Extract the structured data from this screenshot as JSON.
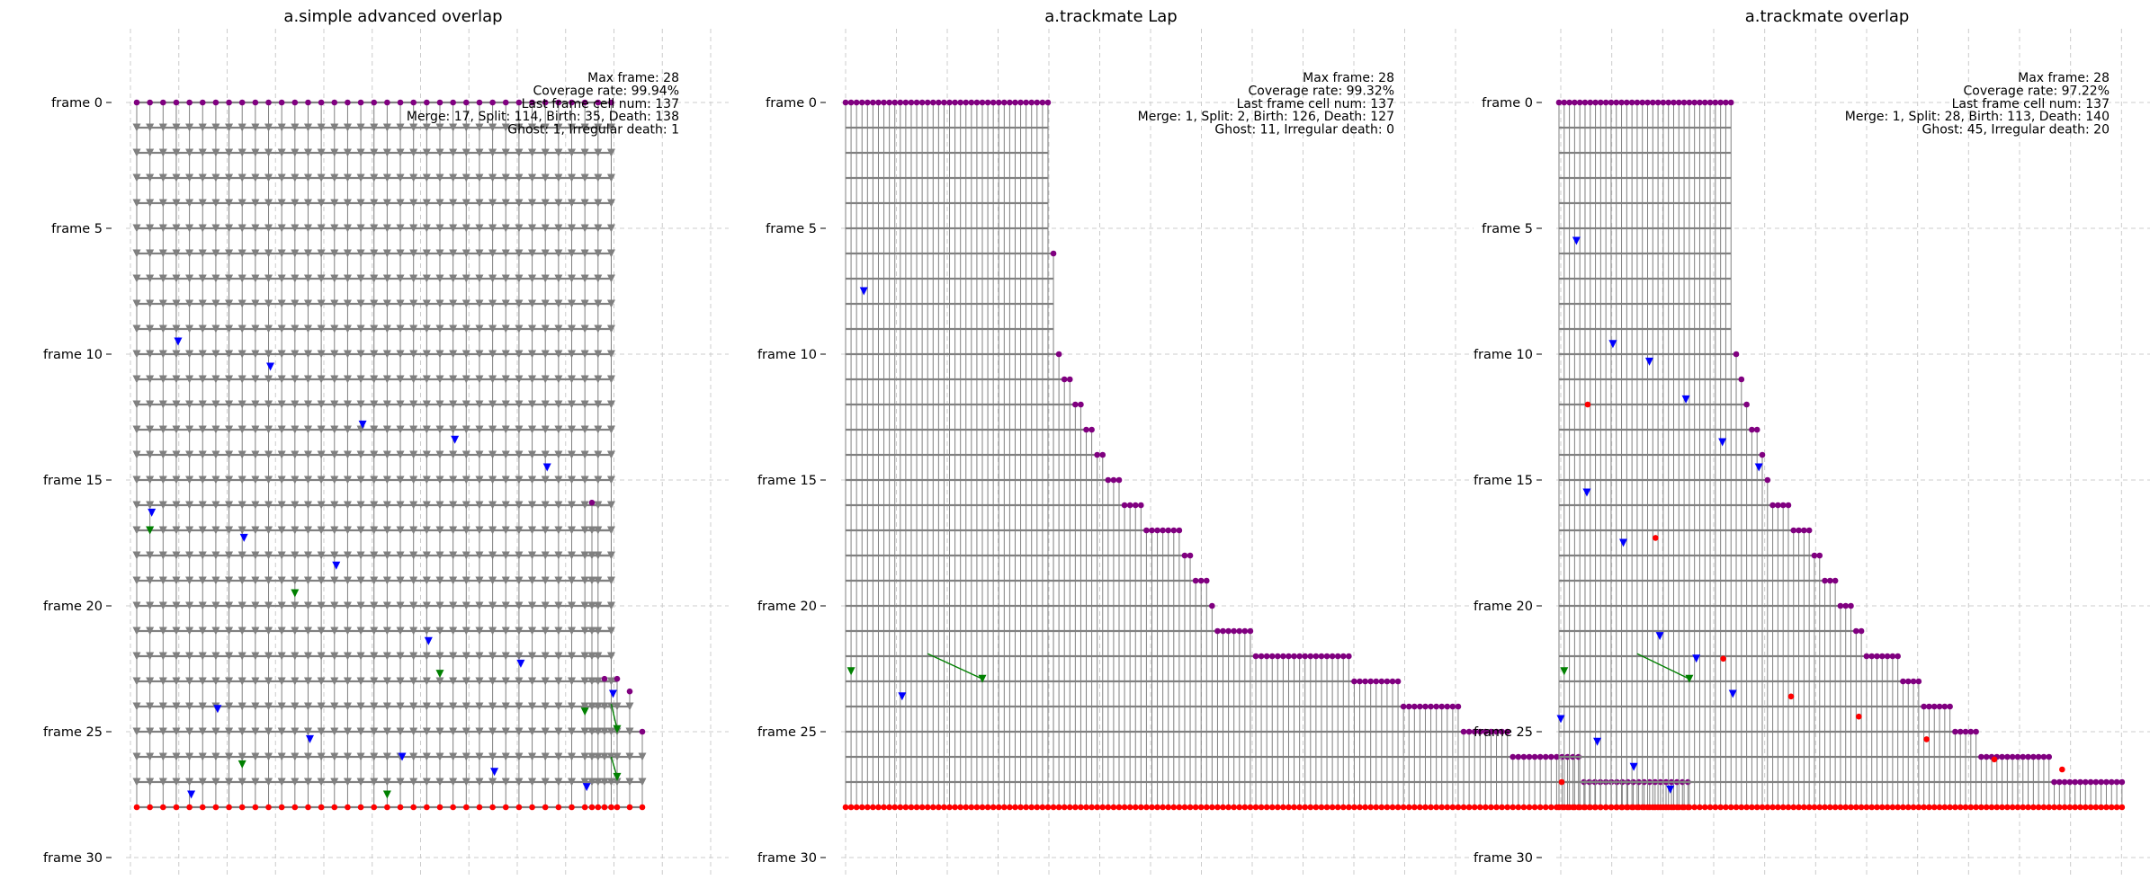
{
  "chart_data": [
    {
      "type": "scatter",
      "title": "a.simple advanced overlap",
      "ylim": [
        0,
        30
      ],
      "yticks": [
        "frame 0",
        "frame 5",
        "frame 10",
        "frame 15",
        "frame 20",
        "frame 25",
        "frame 30"
      ],
      "grid": true,
      "annotations": [
        "Max frame: 28",
        "Coverage rate: 99.94%",
        "Last frame cell num: 137",
        "Merge: 17, Split: 114, Birth: 35, Death: 138",
        "Ghost: 1, Irregular death: 1"
      ],
      "annotation_placement": "top-right",
      "colors": {
        "start": "#800080",
        "end": "#ff0000",
        "track": "#808080",
        "split": "#0000ff",
        "merge": "#008000"
      },
      "tracks_main": 37,
      "tracks": [
        {
          "start": 15.9,
          "end": 28
        },
        {
          "start": 22.9,
          "end": 28
        },
        {
          "start": 22.9,
          "end": 28
        },
        {
          "start": 23.4,
          "end": 28
        },
        {
          "start": 25.0,
          "end": 28
        }
      ],
      "split_frames": [
        9.5,
        10.5,
        12.8,
        13.4,
        14.5,
        16.3,
        17.3,
        18.4,
        21.4,
        22.3,
        23.5,
        24.1,
        25.3,
        26.0,
        26.6,
        27.2,
        27.5
      ],
      "merge_frames": [
        17.0,
        19.5,
        22.7,
        24.2,
        26.3,
        27.5
      ],
      "cross_links": [
        {
          "from": 23.9,
          "to": 24.9
        },
        {
          "from": 26.0,
          "to": 26.8
        }
      ]
    },
    {
      "type": "scatter",
      "title": "a.trackmate Lap",
      "ylim": [
        0,
        30
      ],
      "yticks": [
        "frame 0",
        "frame 5",
        "frame 10",
        "frame 15",
        "frame 20",
        "frame 25",
        "frame 30"
      ],
      "grid": true,
      "annotations": [
        "Max frame: 28",
        "Coverage rate: 99.32%",
        "Last frame cell num: 137",
        "Merge: 1, Split: 2, Birth: 126, Death: 127",
        "Ghost: 11, Irregular death: 0"
      ],
      "annotation_placement": "top-right",
      "colors": {
        "start": "#800080",
        "end": "#ff0000",
        "track": "#808080",
        "split": "#0000ff",
        "merge": "#008000"
      },
      "initial_count": 38,
      "births": [
        {
          "frame": 6,
          "count": 1
        },
        {
          "frame": 10,
          "count": 1
        },
        {
          "frame": 11,
          "count": 2
        },
        {
          "frame": 12,
          "count": 2
        },
        {
          "frame": 13,
          "count": 2
        },
        {
          "frame": 14,
          "count": 2
        },
        {
          "frame": 15,
          "count": 3
        },
        {
          "frame": 16,
          "count": 4
        },
        {
          "frame": 17,
          "count": 7
        },
        {
          "frame": 18,
          "count": 2
        },
        {
          "frame": 19,
          "count": 3
        },
        {
          "frame": 20,
          "count": 1
        },
        {
          "frame": 21,
          "count": 7
        },
        {
          "frame": 22,
          "count": 18
        },
        {
          "frame": 23,
          "count": 9
        },
        {
          "frame": 24,
          "count": 11
        },
        {
          "frame": 25,
          "count": 9
        },
        {
          "frame": 26,
          "count": 13
        },
        {
          "frame": 27,
          "count": 20
        }
      ],
      "split_frames": [
        7.5,
        23.6
      ],
      "merge_frames": [
        22.6
      ],
      "cross_links": [
        {
          "from": 21.9,
          "to": 22.9
        }
      ]
    },
    {
      "type": "scatter",
      "title": "a.trackmate overlap",
      "ylim": [
        0,
        30
      ],
      "yticks": [
        "frame 0",
        "frame 5",
        "frame 10",
        "frame 15",
        "frame 20",
        "frame 25",
        "frame 30"
      ],
      "grid": true,
      "annotations": [
        "Max frame: 28",
        "Coverage rate: 97.22%",
        "Last frame cell num: 137",
        "Merge: 1, Split: 28, Birth: 113, Death: 140",
        "Ghost: 45, Irregular death: 20"
      ],
      "annotation_placement": "top-right",
      "colors": {
        "start": "#800080",
        "end": "#ff0000",
        "track": "#808080",
        "split": "#0000ff",
        "merge": "#008000"
      },
      "initial_count": 34,
      "births": [
        {
          "frame": 10,
          "count": 1
        },
        {
          "frame": 11,
          "count": 1
        },
        {
          "frame": 12,
          "count": 1
        },
        {
          "frame": 13,
          "count": 2
        },
        {
          "frame": 14,
          "count": 1
        },
        {
          "frame": 15,
          "count": 1
        },
        {
          "frame": 16,
          "count": 4
        },
        {
          "frame": 17,
          "count": 4
        },
        {
          "frame": 18,
          "count": 2
        },
        {
          "frame": 19,
          "count": 3
        },
        {
          "frame": 20,
          "count": 3
        },
        {
          "frame": 21,
          "count": 2
        },
        {
          "frame": 22,
          "count": 7
        },
        {
          "frame": 23,
          "count": 4
        },
        {
          "frame": 24,
          "count": 6
        },
        {
          "frame": 25,
          "count": 5
        },
        {
          "frame": 26,
          "count": 14
        },
        {
          "frame": 27,
          "count": 14
        }
      ],
      "split_frames": [
        5.5,
        9.6,
        10.3,
        11.8,
        13.5,
        14.5,
        15.5,
        17.5,
        21.2,
        22.1,
        23.5,
        24.5,
        25.4,
        26.4,
        27.3
      ],
      "irregular_death_frames": [
        12.0,
        17.3,
        22.1,
        23.6,
        24.4,
        25.3,
        26.1,
        26.5,
        27.0
      ],
      "merge_frames": [
        22.6
      ],
      "cross_links": [
        {
          "from": 21.9,
          "to": 22.9
        }
      ]
    }
  ]
}
